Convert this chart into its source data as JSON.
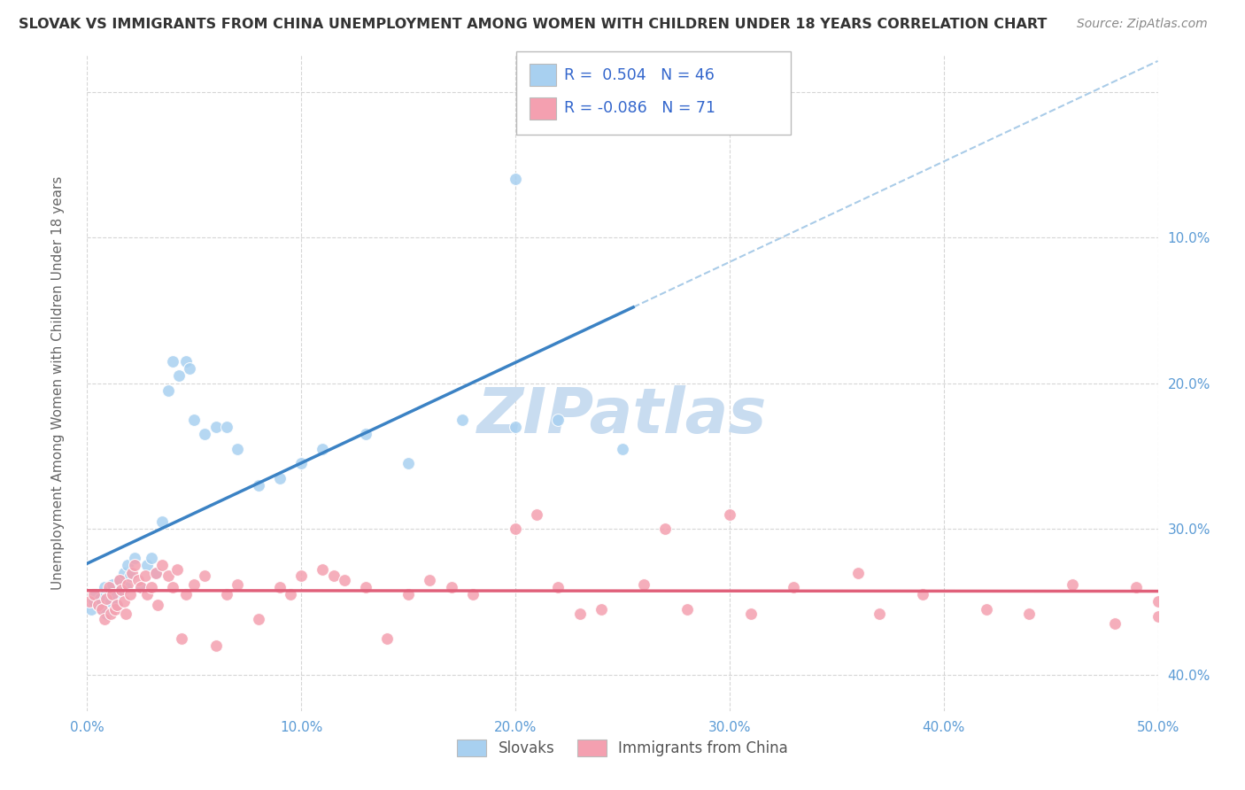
{
  "title": "SLOVAK VS IMMIGRANTS FROM CHINA UNEMPLOYMENT AMONG WOMEN WITH CHILDREN UNDER 18 YEARS CORRELATION CHART",
  "source": "Source: ZipAtlas.com",
  "ylabel": "Unemployment Among Women with Children Under 18 years",
  "watermark": "ZIPatlas",
  "xlim": [
    0.0,
    0.5
  ],
  "ylim": [
    -0.025,
    0.425
  ],
  "xticks": [
    0.0,
    0.1,
    0.2,
    0.3,
    0.4,
    0.5
  ],
  "yticks": [
    0.0,
    0.1,
    0.2,
    0.3,
    0.4
  ],
  "xticklabels": [
    "0.0%",
    "10.0%",
    "20.0%",
    "30.0%",
    "40.0%",
    "50.0%"
  ],
  "yticklabels_right": [
    "40.0%",
    "30.0%",
    "20.0%",
    "10.0%",
    ""
  ],
  "series": [
    {
      "label": "Slovaks",
      "R": 0.504,
      "N": 46,
      "color": "#A8D0F0",
      "line_color": "#3B82C4",
      "line_end_x": 0.255,
      "x": [
        0.002,
        0.003,
        0.004,
        0.005,
        0.006,
        0.007,
        0.008,
        0.009,
        0.01,
        0.011,
        0.012,
        0.013,
        0.014,
        0.015,
        0.016,
        0.017,
        0.018,
        0.019,
        0.02,
        0.022,
        0.025,
        0.028,
        0.03,
        0.032,
        0.035,
        0.038,
        0.04,
        0.043,
        0.046,
        0.048,
        0.05,
        0.055,
        0.06,
        0.065,
        0.07,
        0.08,
        0.09,
        0.1,
        0.11,
        0.13,
        0.15,
        0.175,
        0.2,
        0.22,
        0.25,
        0.2
      ],
      "y": [
        0.045,
        0.05,
        0.055,
        0.048,
        0.052,
        0.045,
        0.06,
        0.042,
        0.058,
        0.05,
        0.062,
        0.055,
        0.048,
        0.065,
        0.058,
        0.07,
        0.06,
        0.075,
        0.068,
        0.08,
        0.06,
        0.075,
        0.08,
        0.07,
        0.105,
        0.195,
        0.215,
        0.205,
        0.215,
        0.21,
        0.175,
        0.165,
        0.17,
        0.17,
        0.155,
        0.13,
        0.135,
        0.145,
        0.155,
        0.165,
        0.145,
        0.175,
        0.17,
        0.175,
        0.155,
        0.34
      ]
    },
    {
      "label": "Immigrants from China",
      "R": -0.086,
      "N": 71,
      "color": "#F4A0B0",
      "line_color": "#E0607A",
      "x": [
        0.001,
        0.003,
        0.005,
        0.007,
        0.008,
        0.009,
        0.01,
        0.011,
        0.012,
        0.013,
        0.014,
        0.015,
        0.016,
        0.017,
        0.018,
        0.019,
        0.02,
        0.021,
        0.022,
        0.024,
        0.025,
        0.027,
        0.028,
        0.03,
        0.032,
        0.033,
        0.035,
        0.038,
        0.04,
        0.042,
        0.044,
        0.046,
        0.05,
        0.055,
        0.06,
        0.065,
        0.07,
        0.08,
        0.09,
        0.095,
        0.1,
        0.11,
        0.115,
        0.12,
        0.13,
        0.14,
        0.15,
        0.16,
        0.17,
        0.18,
        0.2,
        0.21,
        0.22,
        0.23,
        0.24,
        0.26,
        0.27,
        0.28,
        0.3,
        0.31,
        0.33,
        0.36,
        0.37,
        0.39,
        0.42,
        0.44,
        0.46,
        0.48,
        0.49,
        0.5,
        0.5
      ],
      "y": [
        0.05,
        0.055,
        0.048,
        0.045,
        0.038,
        0.052,
        0.06,
        0.042,
        0.055,
        0.045,
        0.048,
        0.065,
        0.058,
        0.05,
        0.042,
        0.062,
        0.055,
        0.07,
        0.075,
        0.065,
        0.06,
        0.068,
        0.055,
        0.06,
        0.07,
        0.048,
        0.075,
        0.068,
        0.06,
        0.072,
        0.025,
        0.055,
        0.062,
        0.068,
        0.02,
        0.055,
        0.062,
        0.038,
        0.06,
        0.055,
        0.068,
        0.072,
        0.068,
        0.065,
        0.06,
        0.025,
        0.055,
        0.065,
        0.06,
        0.055,
        0.1,
        0.11,
        0.06,
        0.042,
        0.045,
        0.062,
        0.1,
        0.045,
        0.11,
        0.042,
        0.06,
        0.07,
        0.042,
        0.055,
        0.045,
        0.042,
        0.062,
        0.035,
        0.06,
        0.05,
        0.04
      ]
    }
  ],
  "background_color": "#FFFFFF",
  "grid_color": "#CCCCCC",
  "title_color": "#333333",
  "tick_color": "#5B9BD5",
  "watermark_color": "#C8DCF0",
  "legend_R_color": "#3366CC"
}
